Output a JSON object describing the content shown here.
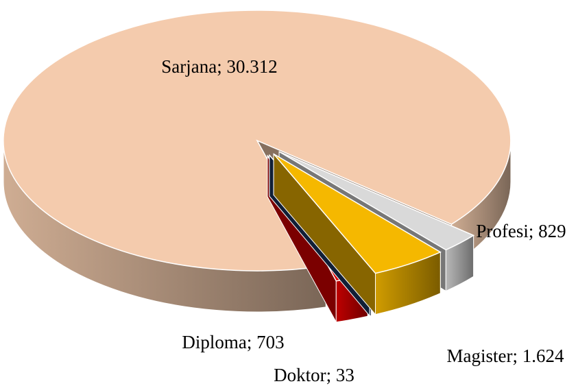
{
  "chart_data": {
    "type": "pie",
    "three_d": true,
    "categories": [
      "Sarjana",
      "Diploma",
      "Doktor",
      "Magister",
      "Profesi"
    ],
    "values": [
      30312,
      703,
      33,
      1624,
      829
    ],
    "value_labels": [
      "Sarjana; 30.312",
      "Diploma; 703",
      "Doktor; 33",
      "Magister; 1.624",
      "Profesi; 829"
    ],
    "colors": [
      "#f4cbad",
      "#e00000",
      "#1f3864",
      "#f5b800",
      "#d9d9d9"
    ]
  }
}
